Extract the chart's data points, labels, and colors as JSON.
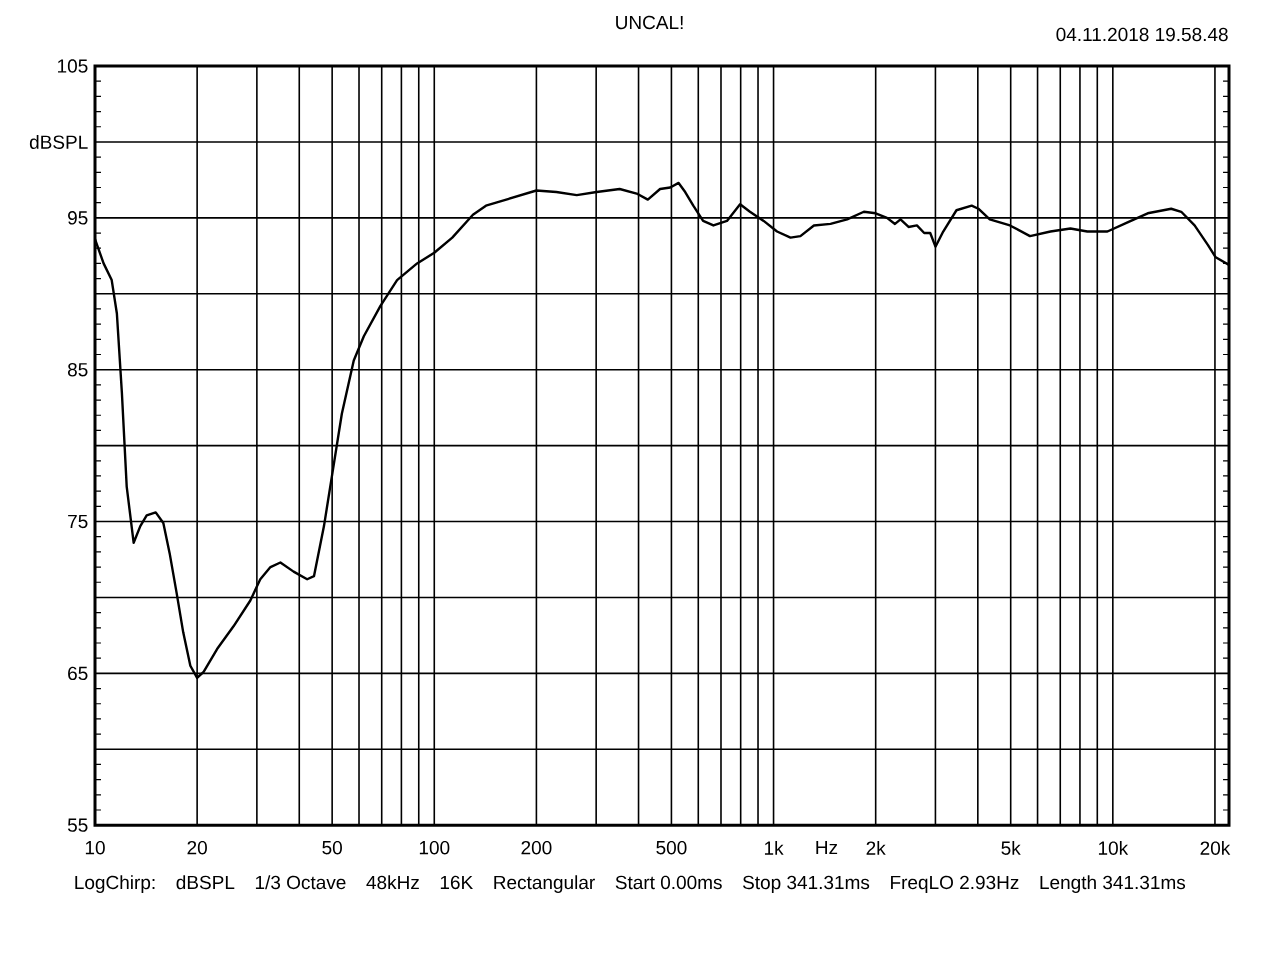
{
  "chart_data": {
    "type": "line",
    "title": "UNCAL!",
    "xlabel": "Hz",
    "ylabel": "dBSPL",
    "annotations": [
      "04.11.2018 19.58.48",
      "LogChirp:",
      "dBSPL",
      "1/3 Octave",
      "48kHz",
      "16K",
      "Rectangular",
      "Start 0.00ms",
      "Stop 341.31ms",
      "FreqLO 2.93Hz",
      "Length 341.31ms"
    ],
    "log": "x",
    "grid": true,
    "xlim": [
      10,
      22000
    ],
    "ylim": [
      55,
      105
    ],
    "xticks": [
      10,
      20,
      {
        "value": 30,
        "label": null
      },
      {
        "value": 40,
        "label": null
      },
      50,
      {
        "value": 60,
        "label": null
      },
      {
        "value": 70,
        "label": null
      },
      {
        "value": 80,
        "label": null
      },
      {
        "value": 90,
        "label": null
      },
      100,
      200,
      {
        "value": 300,
        "label": null
      },
      {
        "value": 400,
        "label": null
      },
      500,
      {
        "value": 600,
        "label": null
      },
      {
        "value": 700,
        "label": null
      },
      {
        "value": 800,
        "label": null
      },
      {
        "value": 900,
        "label": null
      },
      {
        "value": 1000,
        "label": "1k"
      },
      {
        "value": 2000,
        "label": "2k"
      },
      {
        "value": 3000,
        "label": null
      },
      {
        "value": 4000,
        "label": null
      },
      {
        "value": 5000,
        "label": "5k"
      },
      {
        "value": 6000,
        "label": null
      },
      {
        "value": 7000,
        "label": null
      },
      {
        "value": 8000,
        "label": null
      },
      {
        "value": 9000,
        "label": null
      },
      {
        "value": 10000,
        "label": "10k"
      },
      {
        "value": 20000,
        "label": "20k"
      }
    ],
    "yticks": [
      55,
      {
        "value": 60,
        "label": null
      },
      65,
      {
        "value": 70,
        "label": null
      },
      75,
      {
        "value": 80,
        "label": null
      },
      85,
      {
        "value": 90,
        "label": null
      },
      95,
      {
        "value": 100,
        "label": null
      },
      105
    ],
    "series": [
      {
        "color": "#000000",
        "line_style": "solid",
        "x": [
          10,
          10.6,
          11.2,
          11.6,
          12,
          12.4,
          13,
          13.6,
          14.2,
          15.1,
          15.9,
          16.6,
          17.4,
          18.2,
          19.1,
          20,
          20.9,
          22.9,
          25.6,
          28.7,
          30.7,
          32.9,
          35.2,
          38.5,
          42.2,
          44.2,
          47.3,
          50.1,
          53.4,
          57.9,
          62,
          69.4,
          77.7,
          89,
          100,
          113,
          130,
          142,
          163,
          200,
          229,
          263,
          301,
          352,
          395,
          426,
          463,
          496,
          525,
          549,
          580,
          620,
          665,
          729,
          797,
          852,
          935,
          1024,
          1122,
          1200,
          1315,
          1472,
          1648,
          1846,
          2000,
          2159,
          2280,
          2367,
          2500,
          2646,
          2780,
          2896,
          3001,
          3163,
          3460,
          3837,
          4015,
          4338,
          4974,
          5700,
          6550,
          7500,
          8410,
          9640,
          11050,
          12670,
          14860,
          15910,
          17420,
          19080,
          20100,
          22000
        ],
        "values": [
          93.6,
          92.0,
          90.9,
          88.7,
          83.5,
          77.3,
          73.6,
          74.7,
          75.4,
          75.6,
          74.9,
          72.9,
          70.3,
          67.7,
          65.5,
          64.7,
          65.1,
          66.6,
          68.1,
          69.8,
          71.2,
          72.0,
          72.3,
          71.7,
          71.2,
          71.4,
          74.7,
          78.2,
          82.1,
          85.6,
          87.2,
          89.2,
          90.9,
          92.0,
          92.7,
          93.7,
          95.2,
          95.8,
          96.2,
          96.8,
          96.7,
          96.5,
          96.7,
          96.9,
          96.6,
          96.2,
          96.9,
          97.0,
          97.3,
          96.7,
          95.8,
          94.8,
          94.5,
          94.8,
          95.9,
          95.4,
          94.8,
          94.1,
          93.7,
          93.8,
          94.5,
          94.6,
          94.9,
          95.4,
          95.3,
          95.0,
          94.6,
          94.9,
          94.4,
          94.5,
          94.0,
          94.0,
          93.1,
          94.1,
          95.5,
          95.8,
          95.6,
          94.9,
          94.5,
          93.8,
          94.1,
          94.3,
          94.1,
          94.1,
          94.7,
          95.3,
          95.6,
          95.4,
          94.5,
          93.2,
          92.4,
          91.9
        ]
      }
    ]
  }
}
